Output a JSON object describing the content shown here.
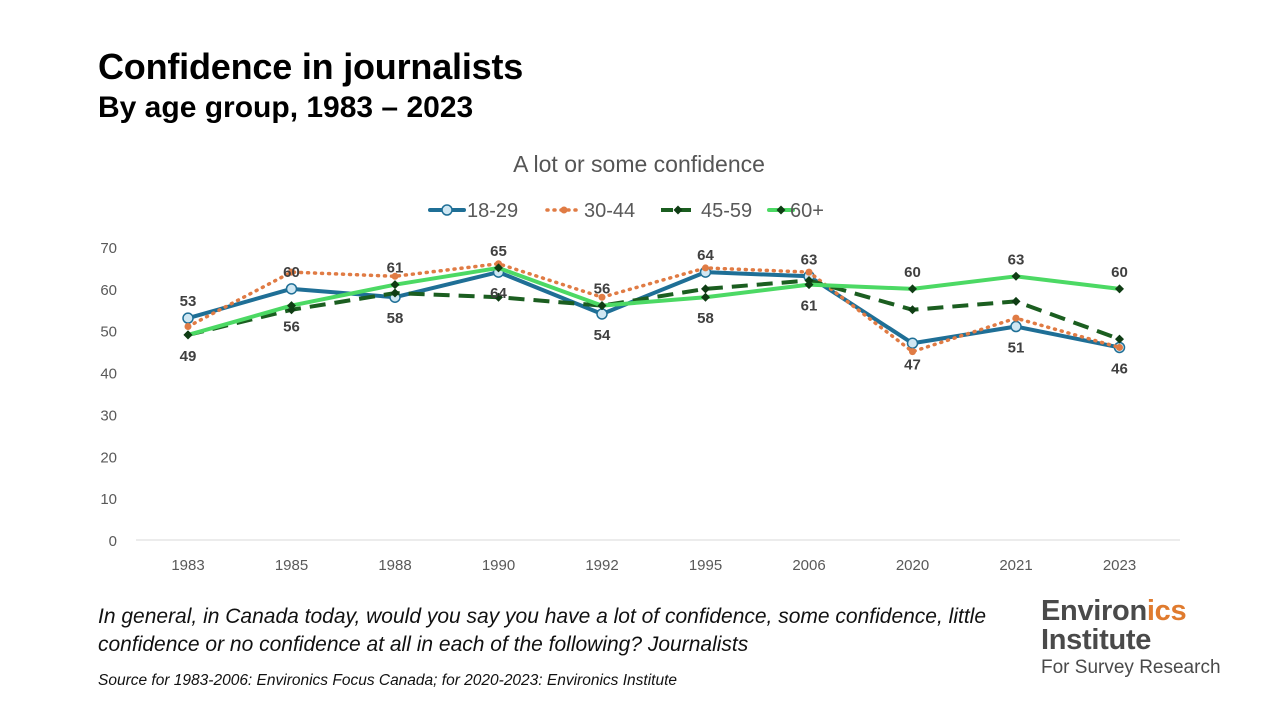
{
  "header": {
    "title": "Confidence in journalists",
    "subtitle": "By age group, 1983 – 2023"
  },
  "footer": {
    "question": "In general, in Canada today, would you say you have a lot of confidence, some confidence, little confidence or no confidence at all in each of the following? Journalists",
    "source": "Source for 1983-2006: Environics Focus Canada; for 2020-2023: Environics Institute"
  },
  "logo": {
    "line1_a": "Environ",
    "line1_b": "ics",
    "line2": "Institute",
    "line3": "For Survey Research",
    "accent_color": "#e07b2e"
  },
  "chart_data": {
    "type": "line",
    "title": "A lot or some confidence",
    "categories": [
      "1983",
      "1985",
      "1988",
      "1990",
      "1992",
      "1995",
      "2006",
      "2020",
      "2021",
      "2023"
    ],
    "ylim": [
      0,
      70
    ],
    "yticks": [
      0,
      10,
      20,
      30,
      40,
      50,
      60,
      70
    ],
    "grid": false,
    "legend": "top-center",
    "series": [
      {
        "name": "18-29",
        "color": "#1f6f96",
        "style": "solid-circle",
        "values": [
          53,
          60,
          58,
          64,
          54,
          64,
          63,
          47,
          51,
          46
        ]
      },
      {
        "name": "30-44",
        "color": "#e07b44",
        "style": "dotted",
        "values": [
          51,
          64,
          63,
          66,
          58,
          65,
          64,
          45,
          53,
          46
        ]
      },
      {
        "name": "45-59",
        "color": "#1b5e20",
        "style": "dashed-diamond",
        "values": [
          49,
          55,
          59,
          58,
          56,
          60,
          62,
          55,
          57,
          48
        ]
      },
      {
        "name": "60+",
        "color": "#4cd964",
        "style": "solid-diamond",
        "values": [
          49,
          56,
          61,
          65,
          56,
          58,
          61,
          60,
          63,
          60
        ]
      }
    ],
    "data_labels": [
      {
        "category": "1983",
        "value": "53",
        "pos": "above"
      },
      {
        "category": "1983",
        "value": "49",
        "pos": "below"
      },
      {
        "category": "1985",
        "value": "60",
        "pos": "above"
      },
      {
        "category": "1985",
        "value": "56",
        "pos": "below"
      },
      {
        "category": "1988",
        "value": "61",
        "pos": "above"
      },
      {
        "category": "1988",
        "value": "58",
        "pos": "below"
      },
      {
        "category": "1990",
        "value": "65",
        "pos": "above"
      },
      {
        "category": "1990",
        "value": "64",
        "pos": "below"
      },
      {
        "category": "1992",
        "value": "56",
        "pos": "above"
      },
      {
        "category": "1992",
        "value": "54",
        "pos": "below"
      },
      {
        "category": "1995",
        "value": "64",
        "pos": "above"
      },
      {
        "category": "1995",
        "value": "58",
        "pos": "below"
      },
      {
        "category": "2006",
        "value": "63",
        "pos": "above"
      },
      {
        "category": "2006",
        "value": "61",
        "pos": "below"
      },
      {
        "category": "2020",
        "value": "60",
        "pos": "above"
      },
      {
        "category": "2020",
        "value": "47",
        "pos": "below"
      },
      {
        "category": "2021",
        "value": "63",
        "pos": "above"
      },
      {
        "category": "2021",
        "value": "51",
        "pos": "below"
      },
      {
        "category": "2023",
        "value": "60",
        "pos": "above"
      },
      {
        "category": "2023",
        "value": "46",
        "pos": "below"
      }
    ]
  }
}
